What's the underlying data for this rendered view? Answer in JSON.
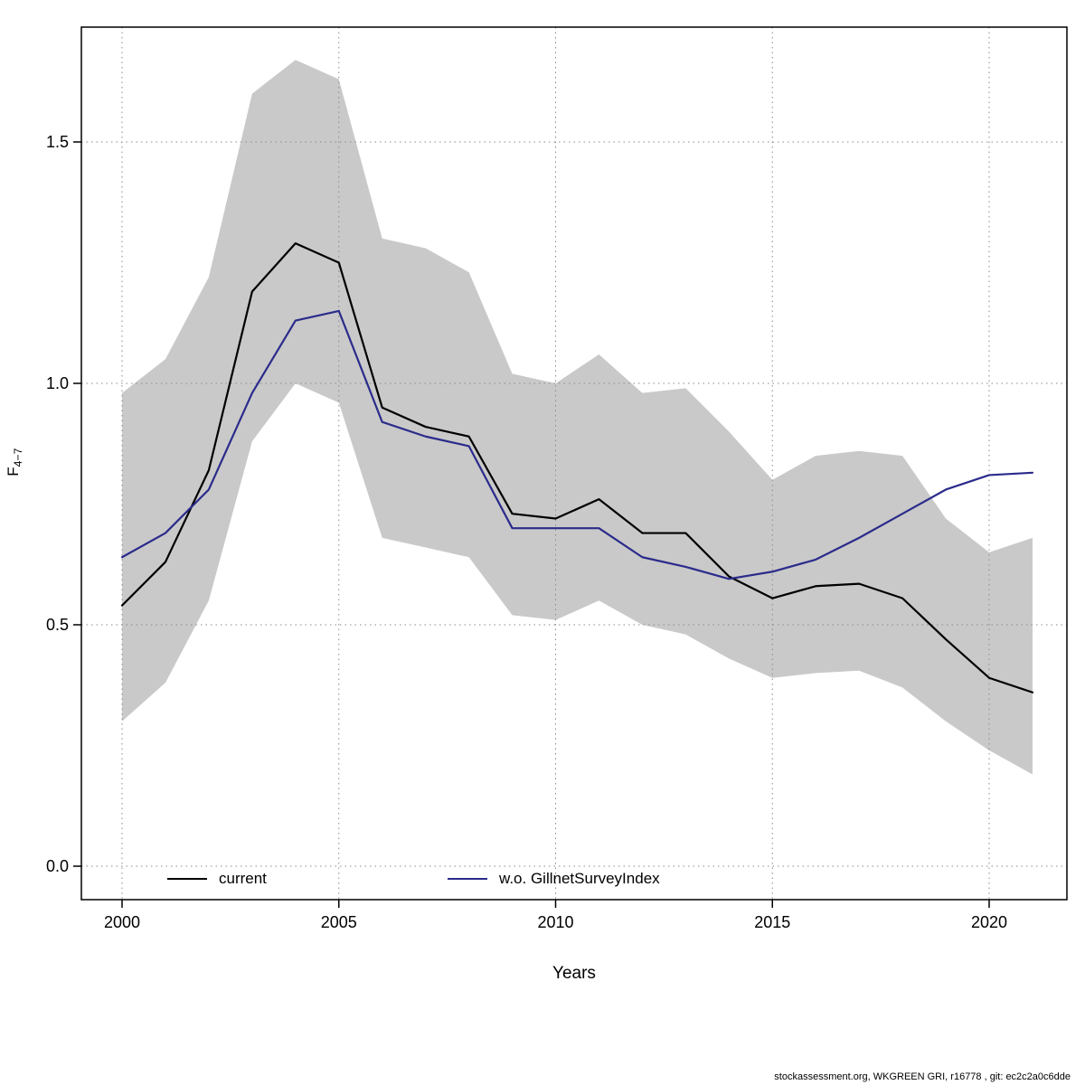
{
  "figure": {
    "background": "#ffffff",
    "band_color": "#c9c9c9",
    "grid_color": "#8a8a8a"
  },
  "footer": {
    "text": "stockassessment.org, WKGREEN GRI, r16778 , git: ec2c2a0c6dde"
  },
  "axes": {
    "x_label": "Years",
    "y_label_main": "F",
    "y_label_sub": "4−7",
    "x_ticks": [
      2000,
      2005,
      2010,
      2015,
      2020
    ],
    "y_ticks": [
      "0.0",
      "0.5",
      "1.0",
      "1.5"
    ]
  },
  "legend": [
    {
      "label": "current",
      "color": "#000000"
    },
    {
      "label": "w.o. GillnetSurveyIndex",
      "color": "#2b2b8c"
    }
  ],
  "chart_data": {
    "type": "line",
    "title": "",
    "xlabel": "Years",
    "ylabel": "F_4-7",
    "xlim": [
      1999.05,
      2021.8
    ],
    "ylim": [
      -0.07,
      1.74
    ],
    "grid": "dotted",
    "legend_position": "bottom-inside",
    "x": [
      2000,
      2001,
      2002,
      2003,
      2004,
      2005,
      2006,
      2007,
      2008,
      2009,
      2010,
      2011,
      2012,
      2013,
      2014,
      2015,
      2016,
      2017,
      2018,
      2019,
      2020,
      2021
    ],
    "series": [
      {
        "name": "current",
        "color": "#000000",
        "values": [
          0.54,
          0.63,
          0.82,
          1.19,
          1.29,
          1.25,
          0.95,
          0.91,
          0.89,
          0.73,
          0.72,
          0.76,
          0.69,
          0.69,
          0.6,
          0.555,
          0.58,
          0.585,
          0.555,
          0.47,
          0.39,
          0.36
        ]
      },
      {
        "name": "w.o. GillnetSurveyIndex",
        "color": "#2b2b8c",
        "values": [
          0.64,
          0.69,
          0.78,
          0.98,
          1.13,
          1.15,
          0.92,
          0.89,
          0.87,
          0.7,
          0.7,
          0.7,
          0.64,
          0.62,
          0.595,
          0.61,
          0.635,
          0.68,
          0.73,
          0.78,
          0.81,
          0.815
        ]
      }
    ],
    "band": {
      "for_series": "current",
      "color": "#c9c9c9",
      "upper": [
        0.98,
        1.05,
        1.22,
        1.6,
        1.67,
        1.63,
        1.3,
        1.28,
        1.23,
        1.02,
        1.0,
        1.06,
        0.98,
        0.99,
        0.9,
        0.8,
        0.85,
        0.86,
        0.85,
        0.72,
        0.65,
        0.68
      ],
      "lower": [
        0.3,
        0.38,
        0.55,
        0.88,
        1.0,
        0.96,
        0.68,
        0.66,
        0.64,
        0.52,
        0.51,
        0.55,
        0.5,
        0.48,
        0.43,
        0.39,
        0.4,
        0.405,
        0.37,
        0.3,
        0.24,
        0.19
      ]
    }
  }
}
